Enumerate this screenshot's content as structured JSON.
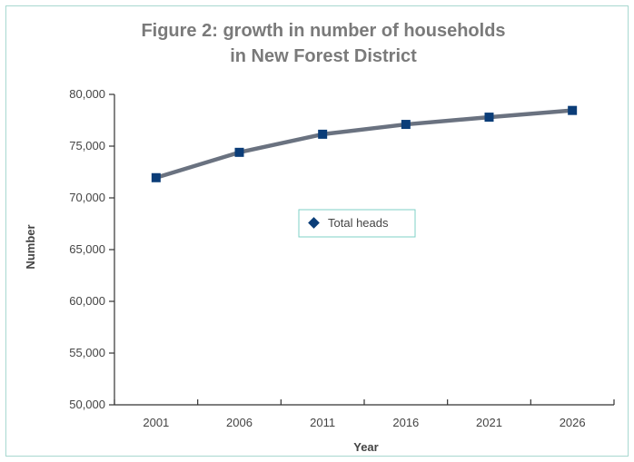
{
  "chart_data": {
    "type": "line",
    "title_lines": [
      "Figure 2: growth in number of households",
      "in New Forest District"
    ],
    "xlabel": "Year",
    "ylabel": "Number",
    "categories": [
      "2001",
      "2006",
      "2011",
      "2016",
      "2021",
      "2026"
    ],
    "series": [
      {
        "name": "Total heads",
        "values": [
          71950,
          74400,
          76150,
          77100,
          77800,
          78450
        ]
      }
    ],
    "ylim": [
      50000,
      80000
    ],
    "yticks": [
      50000,
      55000,
      60000,
      65000,
      70000,
      75000,
      80000
    ],
    "ytick_labels": [
      "50,000",
      "55,000",
      "60,000",
      "65,000",
      "70,000",
      "75,000",
      "80,000"
    ],
    "grid": false,
    "legend_position": "center",
    "colors": {
      "line": "#6a7280",
      "marker": "#0b3d78",
      "legend_border": "#7fd1c7",
      "frame_border": "#a8d8d0"
    }
  }
}
